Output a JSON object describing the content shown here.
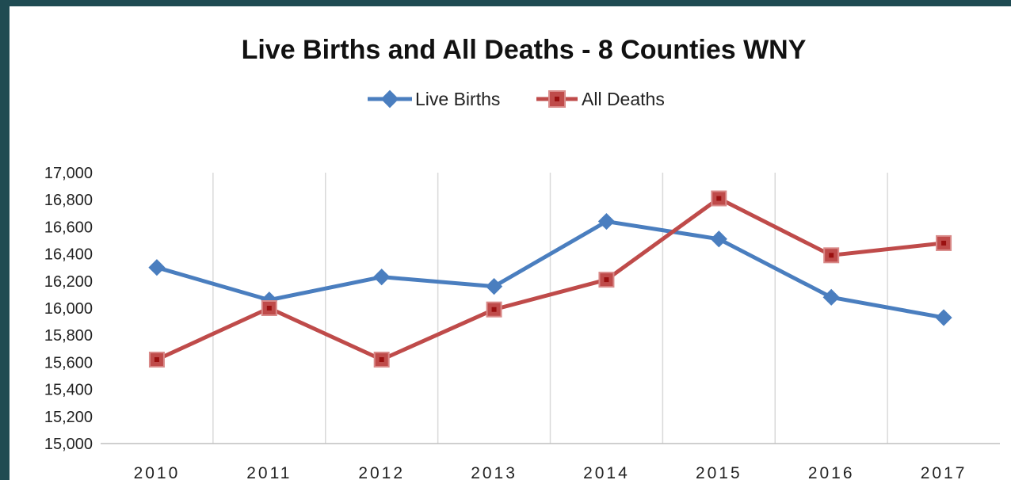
{
  "chart_data": {
    "type": "line",
    "title": "Live Births and All Deaths - 8 Counties WNY",
    "xlabel": "",
    "ylabel": "",
    "categories": [
      "2010",
      "2011",
      "2012",
      "2013",
      "2014",
      "2015",
      "2016",
      "2017"
    ],
    "ylim": [
      15000,
      17000
    ],
    "ytick_step": 200,
    "grid": "vertical",
    "legend_position": "top",
    "series": [
      {
        "name": "Live Births",
        "color": "#4a7ebf",
        "marker": "diamond",
        "values": [
          16300,
          16060,
          16230,
          16160,
          16640,
          16510,
          16080,
          15930
        ]
      },
      {
        "name": "All Deaths",
        "color": "#bf4b4a",
        "marker": "square",
        "values": [
          15620,
          16000,
          15620,
          15990,
          16210,
          16810,
          16390,
          16480
        ]
      }
    ]
  }
}
